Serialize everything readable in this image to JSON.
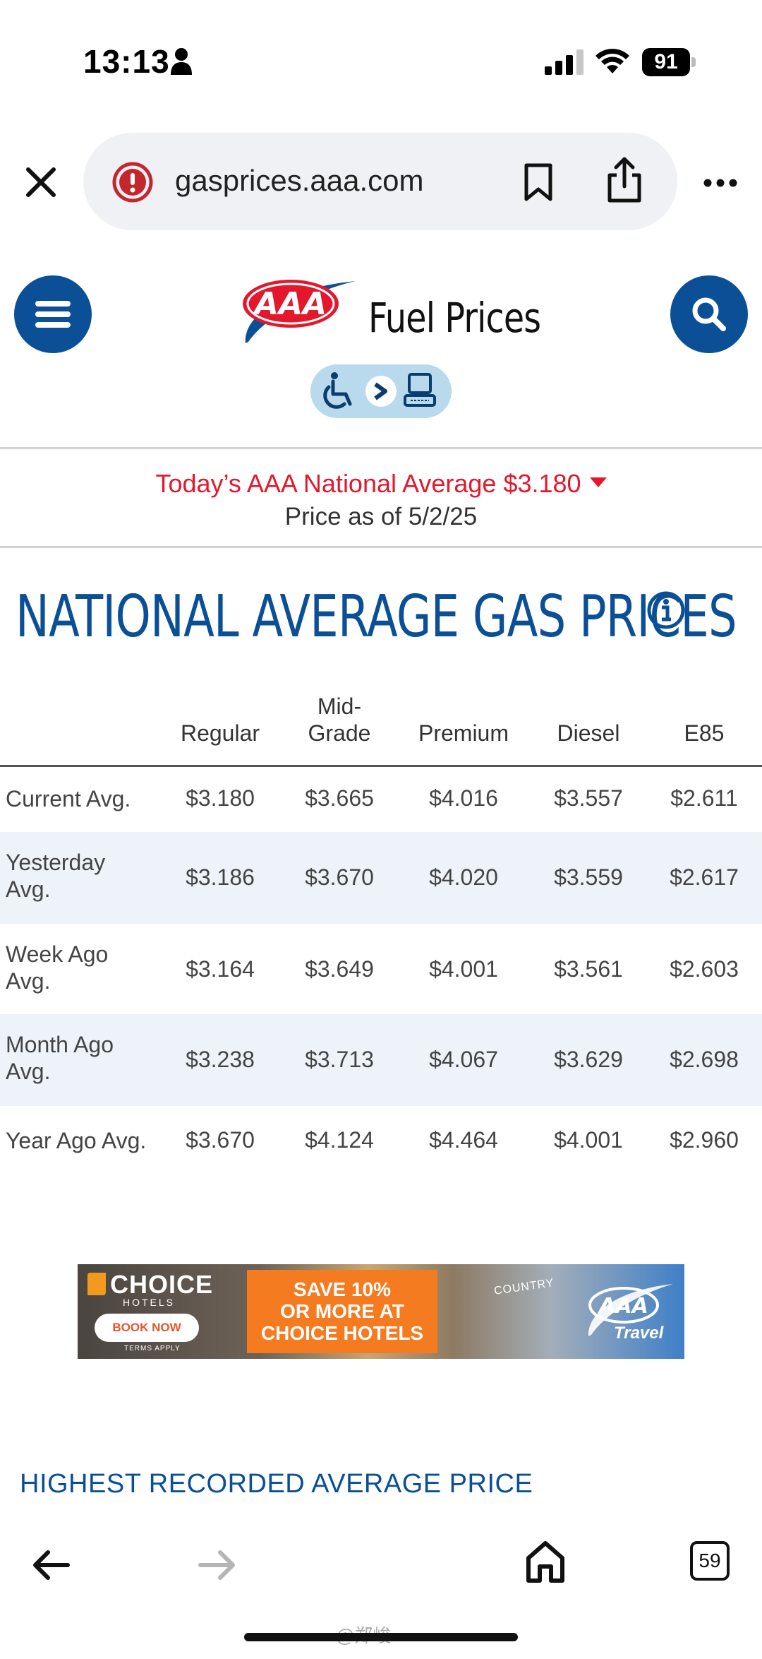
{
  "status_bar": {
    "time": "13:13",
    "battery": "91"
  },
  "browser": {
    "url": "gasprices.aaa.com",
    "tab_count": "59"
  },
  "site": {
    "title": "Fuel Prices",
    "logo_text": "AAA",
    "brand_color": "#0b4f96"
  },
  "banner": {
    "national_average": "Today’s AAA National Average $3.180",
    "price_date": "Price as of 5/2/25",
    "accent_color": "#e3182d"
  },
  "heading": "NATIONAL AVERAGE GAS PRICES",
  "table": {
    "columns": [
      "Regular",
      "Mid-\nGrade",
      "Premium",
      "Diesel",
      "E85"
    ],
    "rows": [
      {
        "label": "Current Avg.",
        "values": [
          "$3.180",
          "$3.665",
          "$4.016",
          "$3.557",
          "$2.611"
        ]
      },
      {
        "label": "Yesterday\nAvg.",
        "values": [
          "$3.186",
          "$3.670",
          "$4.020",
          "$3.559",
          "$2.617"
        ]
      },
      {
        "label": "Week Ago\nAvg.",
        "values": [
          "$3.164",
          "$3.649",
          "$4.001",
          "$3.561",
          "$2.603"
        ]
      },
      {
        "label": "Month Ago\nAvg.",
        "values": [
          "$3.238",
          "$3.713",
          "$4.067",
          "$3.629",
          "$2.698"
        ]
      },
      {
        "label": "Year Ago Avg.",
        "values": [
          "$3.670",
          "$4.124",
          "$4.464",
          "$4.001",
          "$2.960"
        ]
      }
    ]
  },
  "ad": {
    "brand": "CHOICE",
    "brand_sub": "HOTELS",
    "cta": "BOOK NOW",
    "terms": "TERMS APPLY",
    "offer": "SAVE 10%\nOR MORE AT\nCHOICE HOTELS",
    "hotel_sign": "COUNTRY",
    "partner": "AAA",
    "partner_sub": "Travel"
  },
  "section_heading": "HIGHEST RECORDED AVERAGE PRICE",
  "watermark": "@郑峻"
}
